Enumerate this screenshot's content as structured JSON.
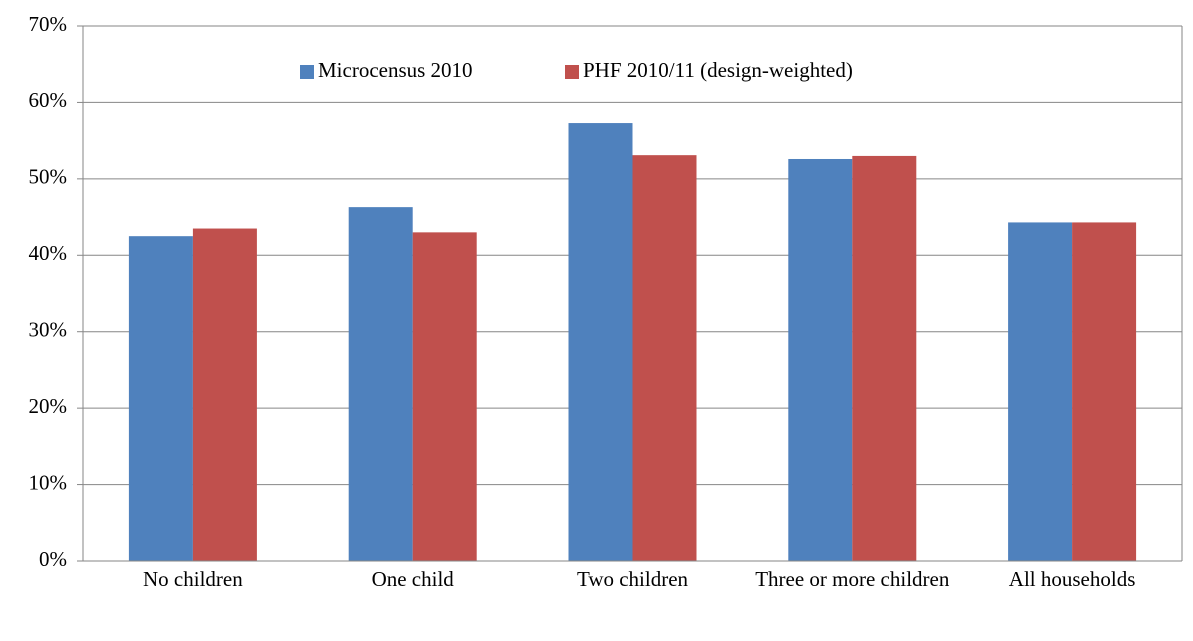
{
  "chart_data": {
    "type": "bar",
    "categories": [
      "No children",
      "One child",
      "Two children",
      "Three or more children",
      "All households"
    ],
    "series": [
      {
        "name": "Microcensus 2010",
        "color": "#4f81bd",
        "values": [
          42.5,
          46.3,
          57.3,
          52.6,
          44.3
        ]
      },
      {
        "name": "PHF 2010/11 (design-weighted)",
        "color": "#c0504d",
        "values": [
          43.5,
          43.0,
          53.1,
          53.0,
          44.3
        ]
      }
    ],
    "ylim": [
      0,
      70
    ],
    "yticks": [
      {
        "value": 0,
        "label": "0%"
      },
      {
        "value": 10,
        "label": "10%"
      },
      {
        "value": 20,
        "label": "20%"
      },
      {
        "value": 30,
        "label": "30%"
      },
      {
        "value": 40,
        "label": "40%"
      },
      {
        "value": 50,
        "label": "50%"
      },
      {
        "value": 60,
        "label": "60%"
      },
      {
        "value": 70,
        "label": "70%"
      }
    ],
    "grid": true,
    "legend": "top"
  }
}
